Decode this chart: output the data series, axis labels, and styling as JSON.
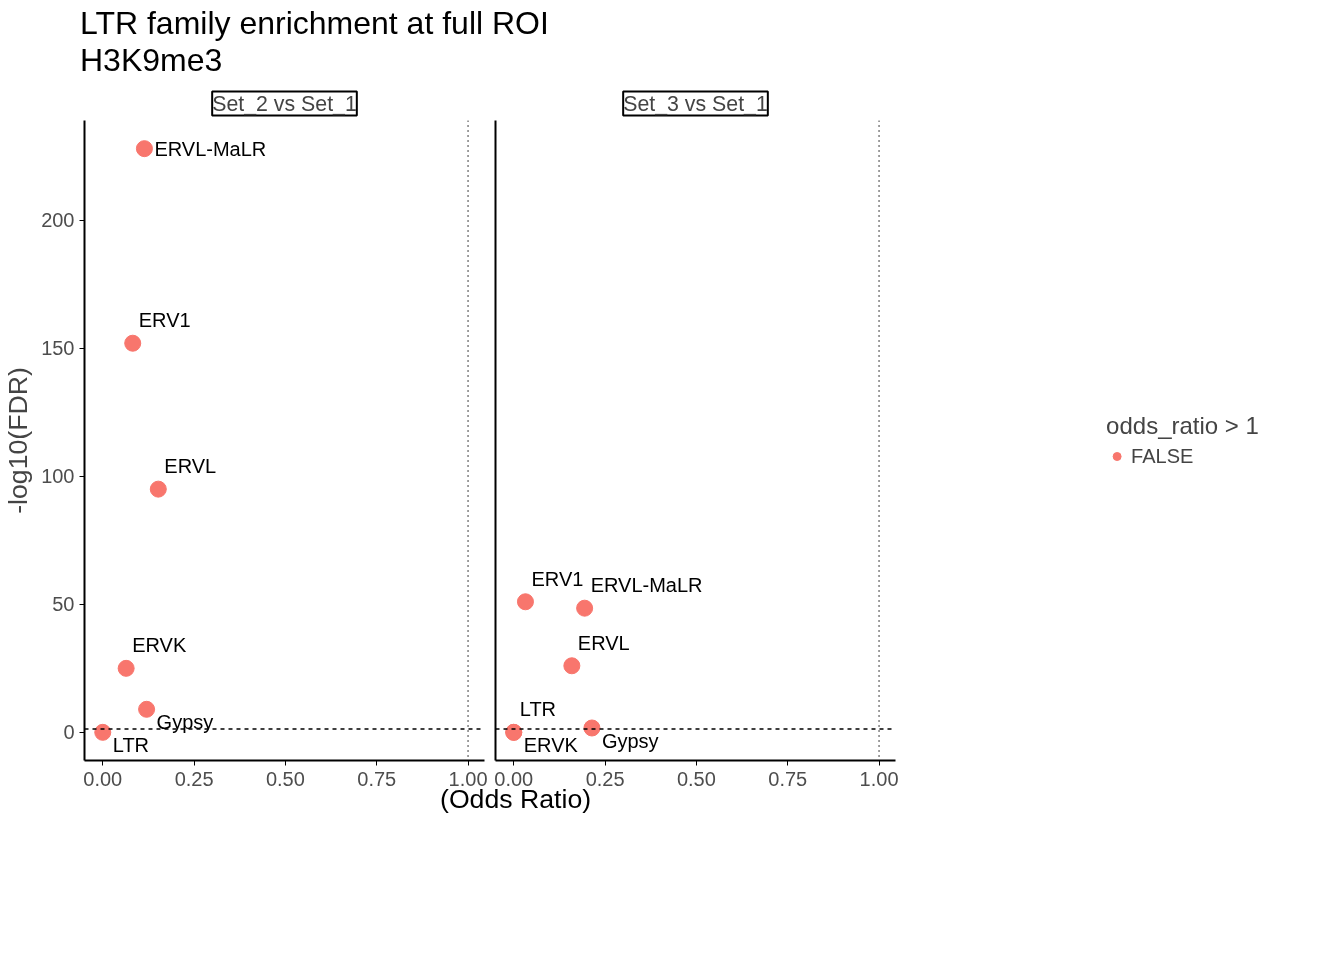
{
  "chart_data": [
    {
      "type": "scatter",
      "title": "Set_2 vs Set_1",
      "ylabel": "-log10(FDR)",
      "xlabel": "(Odds Ratio)",
      "x": [
        0.114,
        0.082,
        0.152,
        0.064,
        0.12,
        0.0
      ],
      "series": [
        {
          "color": "#f8766d",
          "values": [
            228,
            152,
            95,
            25,
            9,
            0
          ]
        }
      ],
      "annotations": [
        "LTR family enrichment at full ROI",
        "H3K9me3",
        {
          "text": "ERVL-MaLR",
          "x": 0.114,
          "y": 228
        },
        {
          "text": "ERV1",
          "x": 0.082,
          "y": 152
        },
        {
          "text": "ERVL",
          "x": 0.152,
          "y": 95
        },
        {
          "text": "ERVK",
          "x": 0.064,
          "y": 25
        },
        {
          "text": "Gypsy",
          "x": 0.12,
          "y": 9
        },
        {
          "text": "LTR",
          "x": 0.0,
          "y": 0
        }
      ],
      "xlim": [
        -0.05,
        1.045
      ],
      "ylim": [
        -11,
        239
      ],
      "xticks": [
        {
          "value": 0,
          "label": "0.00"
        },
        {
          "value": 0.25,
          "label": "0.25"
        },
        {
          "value": 0.5,
          "label": "0.50"
        },
        {
          "value": 0.75,
          "label": "0.75"
        },
        {
          "value": 1,
          "label": "1.00"
        }
      ],
      "yticks": [
        0,
        50,
        100,
        150,
        200
      ],
      "ref_lines": [
        {
          "axis": "y",
          "value": 1.3,
          "line_style": "dashed"
        },
        {
          "axis": "x",
          "value": 1,
          "line_style": "dotted"
        }
      ],
      "marker": "circle"
    },
    {
      "type": "scatter",
      "title": "Set_3 vs Set_1",
      "legend_title": "odds_ratio > 1",
      "legend": "right",
      "x": [
        0.032,
        0.194,
        0.159,
        0.214,
        0.0,
        0.0
      ],
      "series": [
        {
          "name": "FALSE",
          "color": "#f8766d",
          "values": [
            51,
            48.5,
            26,
            1.7,
            0,
            0
          ]
        }
      ],
      "annotations": [
        {
          "text": "ERV1",
          "x": 0.032,
          "y": 51
        },
        {
          "text": "ERVL-MaLR",
          "x": 0.194,
          "y": 48.5
        },
        {
          "text": "ERVL",
          "x": 0.159,
          "y": 26
        },
        {
          "text": "Gypsy",
          "x": 0.214,
          "y": 1.7
        },
        {
          "text": "ERVK",
          "x": 0.0,
          "y": 0
        },
        {
          "text": "LTR",
          "x": 0.0,
          "y": 0
        }
      ],
      "xlim": [
        -0.05,
        1.045
      ],
      "ylim": [
        -11,
        239
      ],
      "xticks": [
        {
          "value": 0,
          "label": "0.00"
        },
        {
          "value": 0.25,
          "label": "0.25"
        },
        {
          "value": 0.5,
          "label": "0.50"
        },
        {
          "value": 0.75,
          "label": "0.75"
        },
        {
          "value": 1,
          "label": "1.00"
        }
      ],
      "yticks": [
        0,
        50,
        100,
        150,
        200
      ],
      "tick_labels": "x",
      "ref_lines": [
        {
          "axis": "y",
          "value": 1.3,
          "line_style": "dashed"
        },
        {
          "axis": "x",
          "value": 1,
          "line_style": "dotted"
        }
      ],
      "marker": "circle"
    }
  ]
}
